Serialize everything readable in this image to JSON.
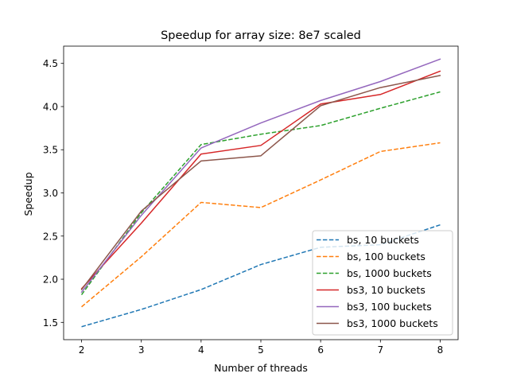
{
  "chart_data": {
    "type": "line",
    "title": "Speedup for array size: 8e7 scaled",
    "xlabel": "Number of threads",
    "ylabel": "Speedup",
    "x": [
      2,
      3,
      4,
      5,
      6,
      7,
      8
    ],
    "xlim": [
      1.7,
      8.3
    ],
    "ylim": [
      1.3,
      4.7
    ],
    "xticks": [
      2,
      3,
      4,
      5,
      6,
      7,
      8
    ],
    "yticks": [
      1.5,
      2.0,
      2.5,
      3.0,
      3.5,
      4.0,
      4.5
    ],
    "grid": false,
    "legend_position": "lower right",
    "series": [
      {
        "name": "bs, 10 buckets",
        "color": "#1f77b4",
        "dash": "dashed",
        "values": [
          1.45,
          1.65,
          1.88,
          2.17,
          2.37,
          2.4,
          2.63
        ]
      },
      {
        "name": "bs, 100 buckets",
        "color": "#ff7f0e",
        "dash": "dashed",
        "values": [
          1.68,
          2.26,
          2.89,
          2.83,
          3.15,
          3.48,
          3.58
        ]
      },
      {
        "name": "bs, 1000 buckets",
        "color": "#2ca02c",
        "dash": "dashed",
        "values": [
          1.82,
          2.77,
          3.56,
          3.68,
          3.78,
          3.98,
          4.17
        ]
      },
      {
        "name": "bs3, 10 buckets",
        "color": "#d62728",
        "dash": "solid",
        "values": [
          1.89,
          2.65,
          3.45,
          3.55,
          4.03,
          4.14,
          4.41
        ]
      },
      {
        "name": "bs3, 100 buckets",
        "color": "#9467bd",
        "dash": "solid",
        "values": [
          1.85,
          2.74,
          3.52,
          3.81,
          4.07,
          4.29,
          4.55
        ]
      },
      {
        "name": "bs3, 1000 buckets",
        "color": "#8c564b",
        "dash": "solid",
        "values": [
          1.88,
          2.79,
          3.37,
          3.43,
          4.01,
          4.22,
          4.36
        ]
      }
    ]
  }
}
